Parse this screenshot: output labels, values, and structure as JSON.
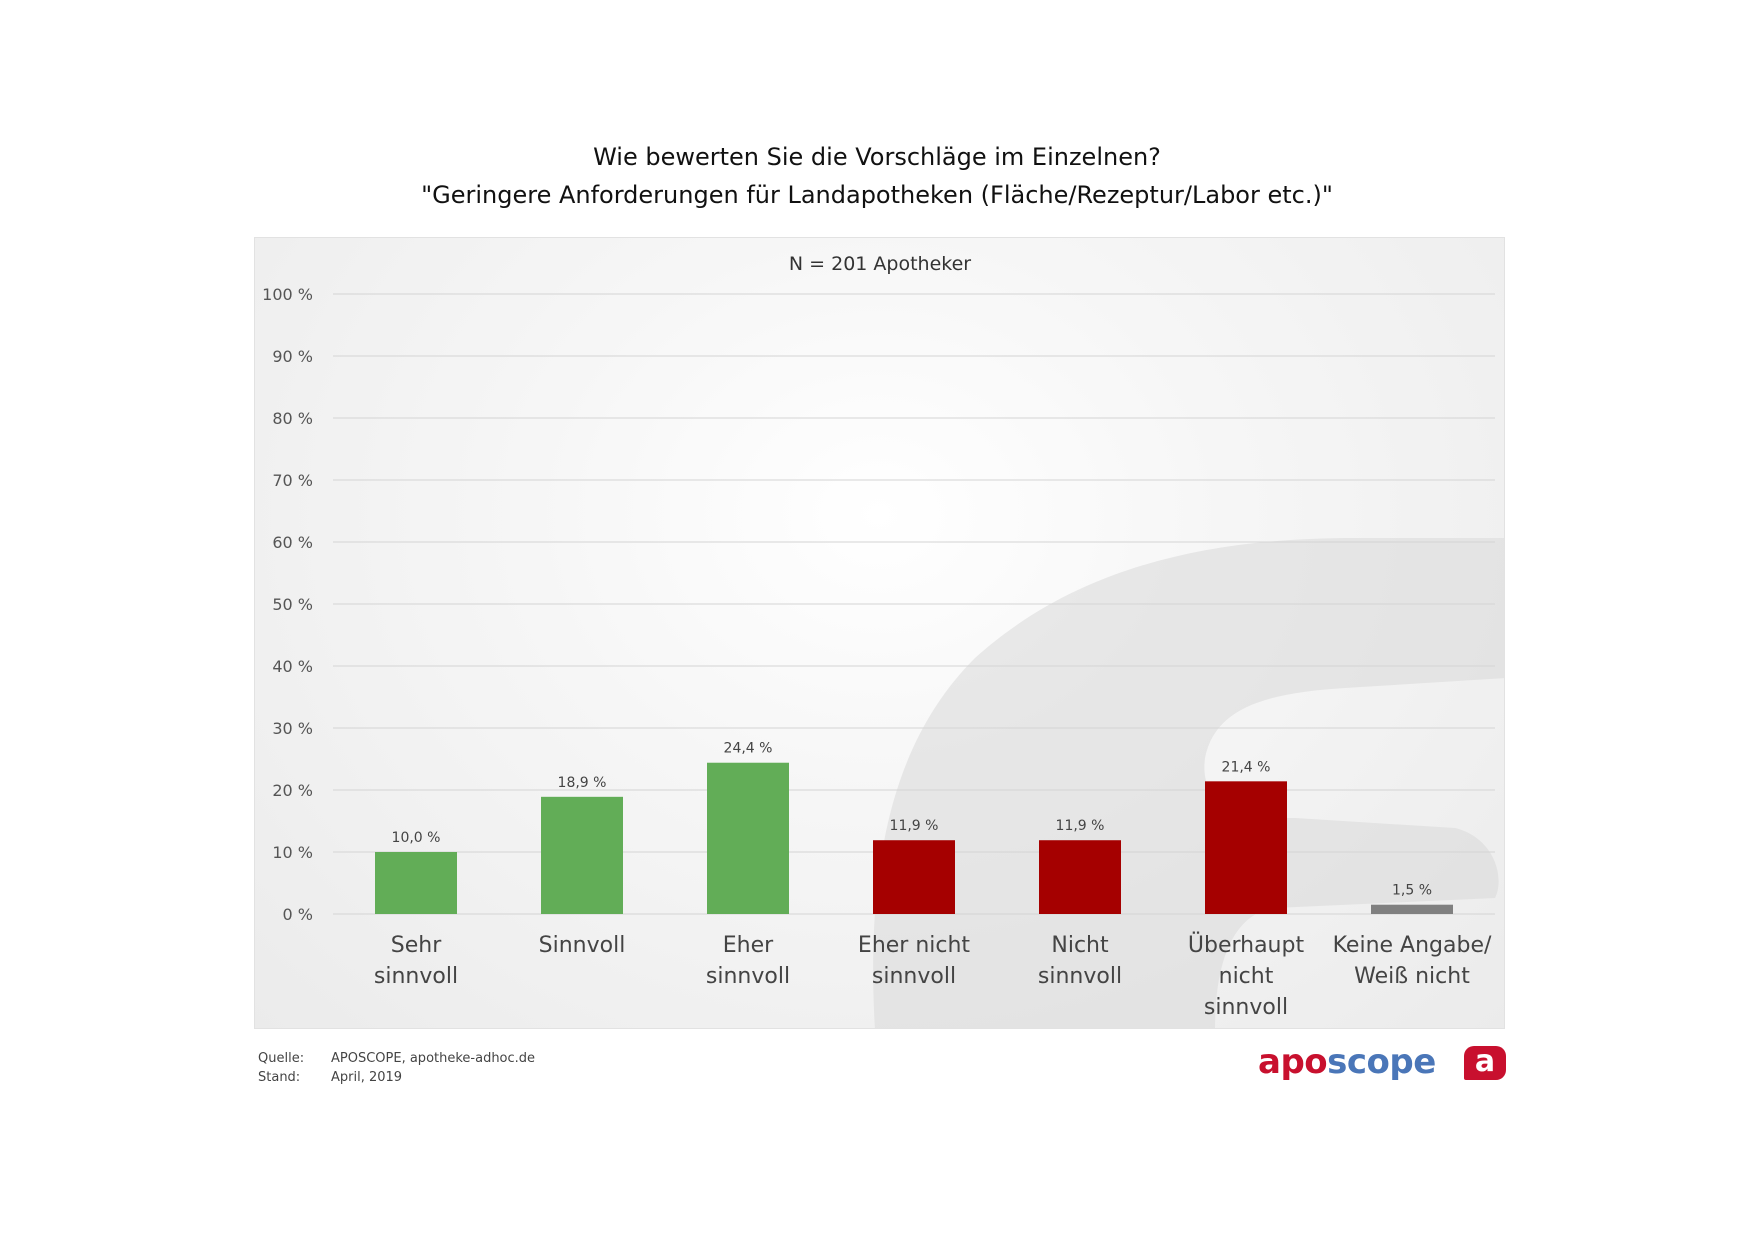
{
  "title_line1": "Wie bewerten Sie die Vorschläge im Einzelnen?",
  "title_line2": "\"Geringere Anforderungen für Landapotheken (Fläche/Rezeptur/Labor etc.)\"",
  "footer": {
    "source_label": "Quelle:",
    "source_value": "APOSCOPE, apotheke-adhoc.de",
    "date_label": "Stand:",
    "date_value": "April, 2019"
  },
  "logo": {
    "part1": "apo",
    "part2": "scope",
    "badge": "a"
  },
  "colors": {
    "positive": "#62ad57",
    "negative": "#a50000",
    "neutral": "#808080"
  },
  "chart_data": {
    "type": "bar",
    "title": "Wie bewerten Sie die Vorschläge im Einzelnen? \"Geringere Anforderungen für Landapotheken (Fläche/Rezeptur/Labor etc.)\"",
    "subtitle": "N = 201 Apotheker",
    "categories": [
      [
        "Sehr",
        "sinnvoll"
      ],
      [
        "Sinnvoll"
      ],
      [
        "Eher",
        "sinnvoll"
      ],
      [
        "Eher nicht",
        "sinnvoll"
      ],
      [
        "Nicht",
        "sinnvoll"
      ],
      [
        "Überhaupt",
        "nicht",
        "sinnvoll"
      ],
      [
        "Keine Angabe/",
        "Weiß nicht"
      ]
    ],
    "values": [
      10.0,
      18.9,
      24.4,
      11.9,
      11.9,
      21.4,
      1.5
    ],
    "value_labels": [
      "10,0 %",
      "18,9 %",
      "24,4 %",
      "11,9 %",
      "11,9 %",
      "21,4 %",
      "1,5 %"
    ],
    "bar_colors": [
      "#62ad57",
      "#62ad57",
      "#62ad57",
      "#a50000",
      "#a50000",
      "#a50000",
      "#808080"
    ],
    "ylim": [
      0,
      100
    ],
    "yticks": [
      "0 %",
      "10 %",
      "20 %",
      "30 %",
      "40 %",
      "50 %",
      "60 %",
      "70 %",
      "80 %",
      "90 %",
      "100 %"
    ],
    "grid": true,
    "legend": "none"
  }
}
